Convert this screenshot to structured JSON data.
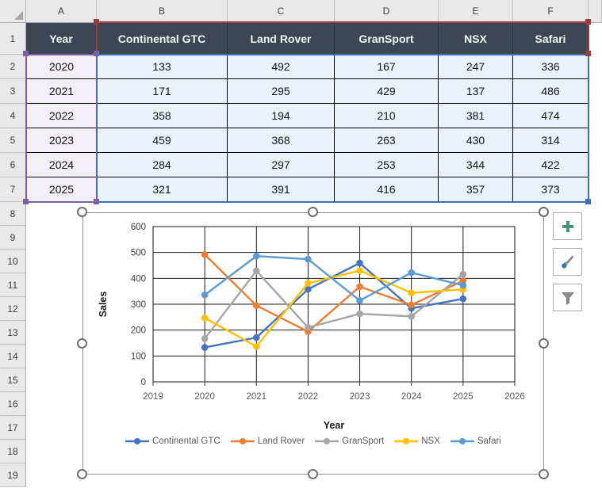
{
  "app": {
    "name": "Excel worksheet with sales table and line chart"
  },
  "grid": {
    "column_letters": [
      "A",
      "B",
      "C",
      "D",
      "E",
      "F"
    ],
    "row_numbers": [
      1,
      2,
      3,
      4,
      5,
      6,
      7,
      8,
      9,
      10,
      11,
      12,
      13,
      14,
      15,
      16,
      17,
      18,
      19
    ]
  },
  "table": {
    "header": [
      "Year",
      "Continental GTC",
      "Land Rover",
      "GranSport",
      "NSX",
      "Safari"
    ],
    "rows": [
      [
        "2020",
        "133",
        "492",
        "167",
        "247",
        "336"
      ],
      [
        "2021",
        "171",
        "295",
        "429",
        "137",
        "486"
      ],
      [
        "2022",
        "358",
        "194",
        "210",
        "381",
        "474"
      ],
      [
        "2023",
        "459",
        "368",
        "263",
        "430",
        "314"
      ],
      [
        "2024",
        "284",
        "297",
        "253",
        "344",
        "422"
      ],
      [
        "2025",
        "321",
        "391",
        "416",
        "357",
        "373"
      ]
    ]
  },
  "chart_data": {
    "type": "line",
    "title": "",
    "xlabel": "Year",
    "ylabel": "Sales",
    "x": [
      2020,
      2021,
      2022,
      2023,
      2024,
      2025
    ],
    "xticks": [
      2019,
      2020,
      2021,
      2022,
      2023,
      2024,
      2025,
      2026
    ],
    "yticks": [
      0,
      100,
      200,
      300,
      400,
      500,
      600
    ],
    "xlim": [
      2019,
      2026
    ],
    "ylim": [
      0,
      600
    ],
    "grid": true,
    "marker": "circle",
    "legend_position": "bottom",
    "series": [
      {
        "name": "Continental GTC",
        "color": "#4472C4",
        "values": [
          133,
          171,
          358,
          459,
          284,
          321
        ]
      },
      {
        "name": "Land Rover",
        "color": "#ED7D31",
        "values": [
          492,
          295,
          194,
          368,
          297,
          391
        ]
      },
      {
        "name": "GranSport",
        "color": "#A5A5A5",
        "values": [
          167,
          429,
          210,
          263,
          253,
          416
        ]
      },
      {
        "name": "NSX",
        "color": "#FFC000",
        "values": [
          247,
          137,
          381,
          430,
          344,
          357
        ]
      },
      {
        "name": "Safari",
        "color": "#5B9BD5",
        "values": [
          336,
          486,
          474,
          314,
          422,
          373
        ]
      }
    ]
  },
  "chart_buttons": [
    {
      "id": "chart-elements",
      "icon": "plus-icon",
      "color": "#45917A"
    },
    {
      "id": "chart-styles",
      "icon": "paintbrush-icon",
      "color": "#8A8A8A"
    },
    {
      "id": "chart-filters",
      "icon": "funnel-icon",
      "color": "#8C8C8C"
    }
  ],
  "selection_colors": {
    "series_names_range": "#9E3B3B",
    "category_range": "#7B5FA7",
    "values_range": "#3E6FB5"
  },
  "style_colors": {
    "table_header_bg": "#3E4656",
    "table_header_text": "#F4F4F6",
    "data_cell_bg": "#EAF1F9",
    "year_cell_bg": "#F3EFF6"
  }
}
